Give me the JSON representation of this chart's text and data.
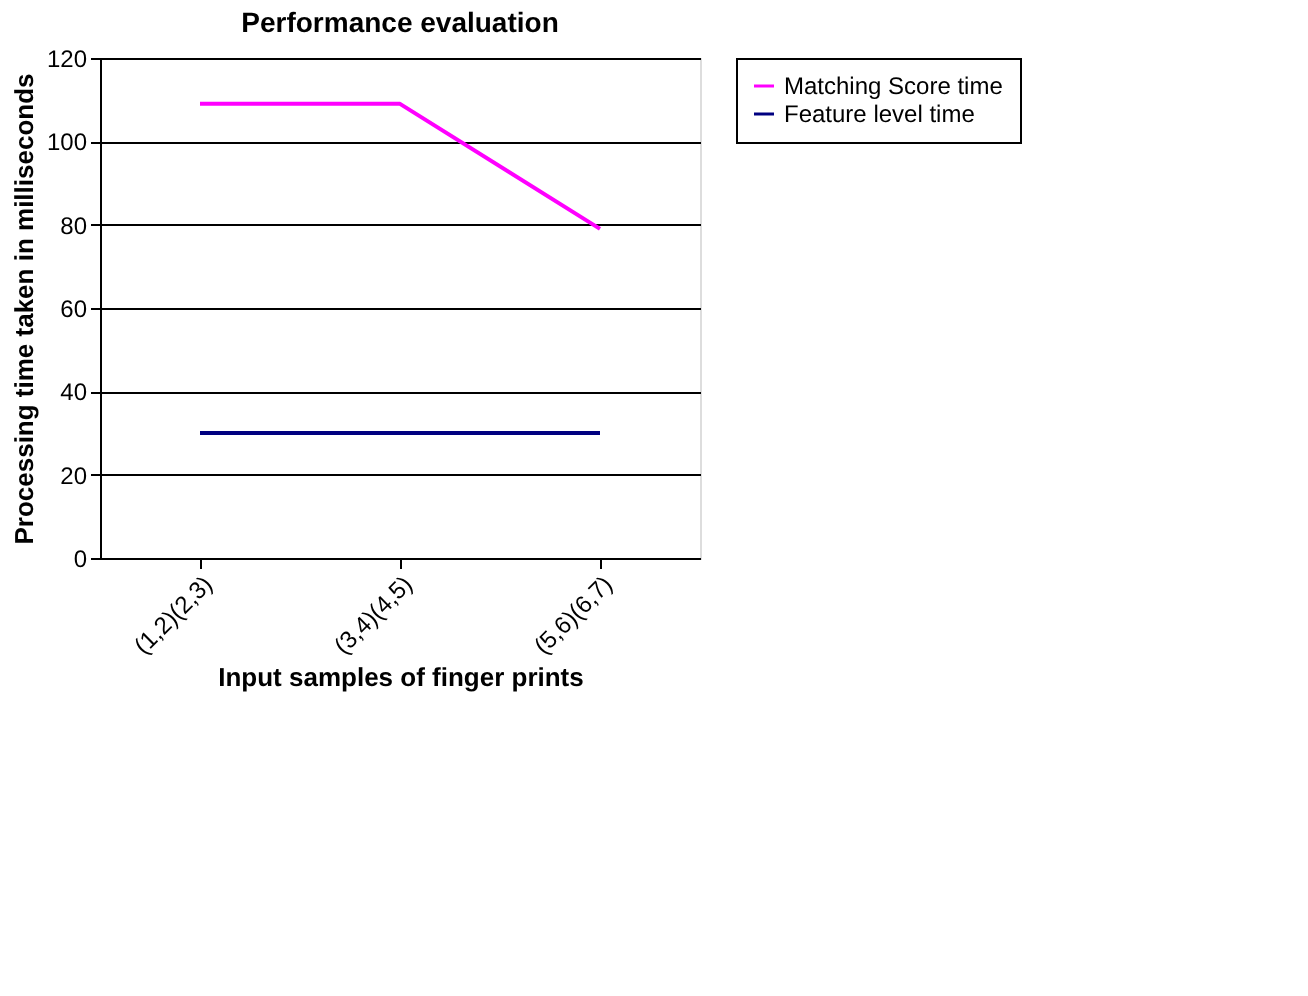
{
  "chart_data": {
    "type": "line",
    "title": "Performance evaluation",
    "xlabel": "Input samples of finger prints",
    "ylabel": "Processing time taken in milliseconds",
    "categories": [
      "(1,2)(2,3)",
      "(3,4)(4,5)",
      "(5,6)(6,7)"
    ],
    "series": [
      {
        "name": "Matching Score time",
        "color": "#ff00ff",
        "values": [
          109,
          109,
          79
        ]
      },
      {
        "name": "Feature level time",
        "color": "#000080",
        "values": [
          30,
          30,
          30
        ]
      }
    ],
    "ylim": [
      0,
      120
    ],
    "yticks": [
      0,
      20,
      40,
      60,
      80,
      100,
      120
    ],
    "grid": "y",
    "legend": "right",
    "marker": "none",
    "line_style": "solid"
  }
}
